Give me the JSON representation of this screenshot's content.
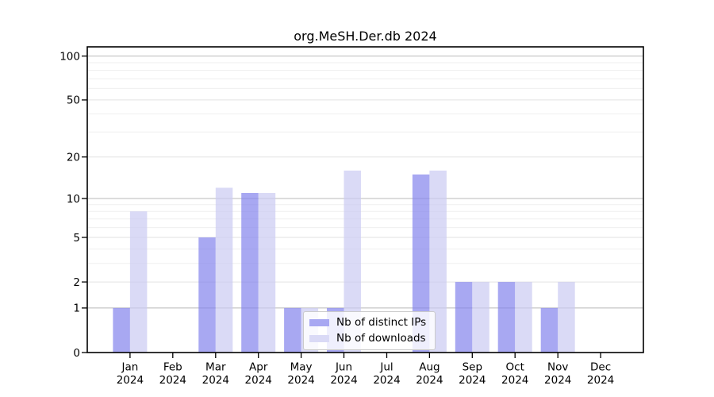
{
  "chart_data": {
    "type": "bar",
    "title": "org.MeSH.Der.db 2024",
    "year": "2024",
    "categories": [
      "Jan",
      "Feb",
      "Mar",
      "Apr",
      "May",
      "Jun",
      "Jul",
      "Aug",
      "Sep",
      "Oct",
      "Nov",
      "Dec"
    ],
    "series": [
      {
        "name": "Nb of distinct IPs",
        "color": "#a8a8f2",
        "bar_fill": "#8383ec",
        "values": [
          1,
          0,
          5,
          11,
          1,
          1,
          0,
          15,
          2,
          2,
          1,
          0
        ]
      },
      {
        "name": "Nb of downloads",
        "color": "#dadaf6",
        "bar_fill": "#cacaf2",
        "values": [
          8,
          0,
          12,
          11,
          1,
          16,
          0,
          16,
          2,
          2,
          2,
          0
        ]
      }
    ],
    "y_axis": {
      "scale": "log1p",
      "tick_values": [
        0,
        1,
        2,
        5,
        10,
        20,
        50,
        100
      ],
      "range": [
        0,
        116
      ],
      "grid": true,
      "gridlines": {
        "major": [
          1,
          10,
          100
        ],
        "mid": [
          2,
          5,
          20,
          50
        ],
        "minor": [
          3,
          4,
          6,
          7,
          8,
          9,
          30,
          40,
          60,
          70,
          80,
          90
        ]
      }
    },
    "legend_position": "lower-center",
    "axis_color": "#000000",
    "grid_major_color": "#b9b9b9",
    "grid_mid_color": "#e2e2e2",
    "grid_minor_color": "#efefef"
  }
}
